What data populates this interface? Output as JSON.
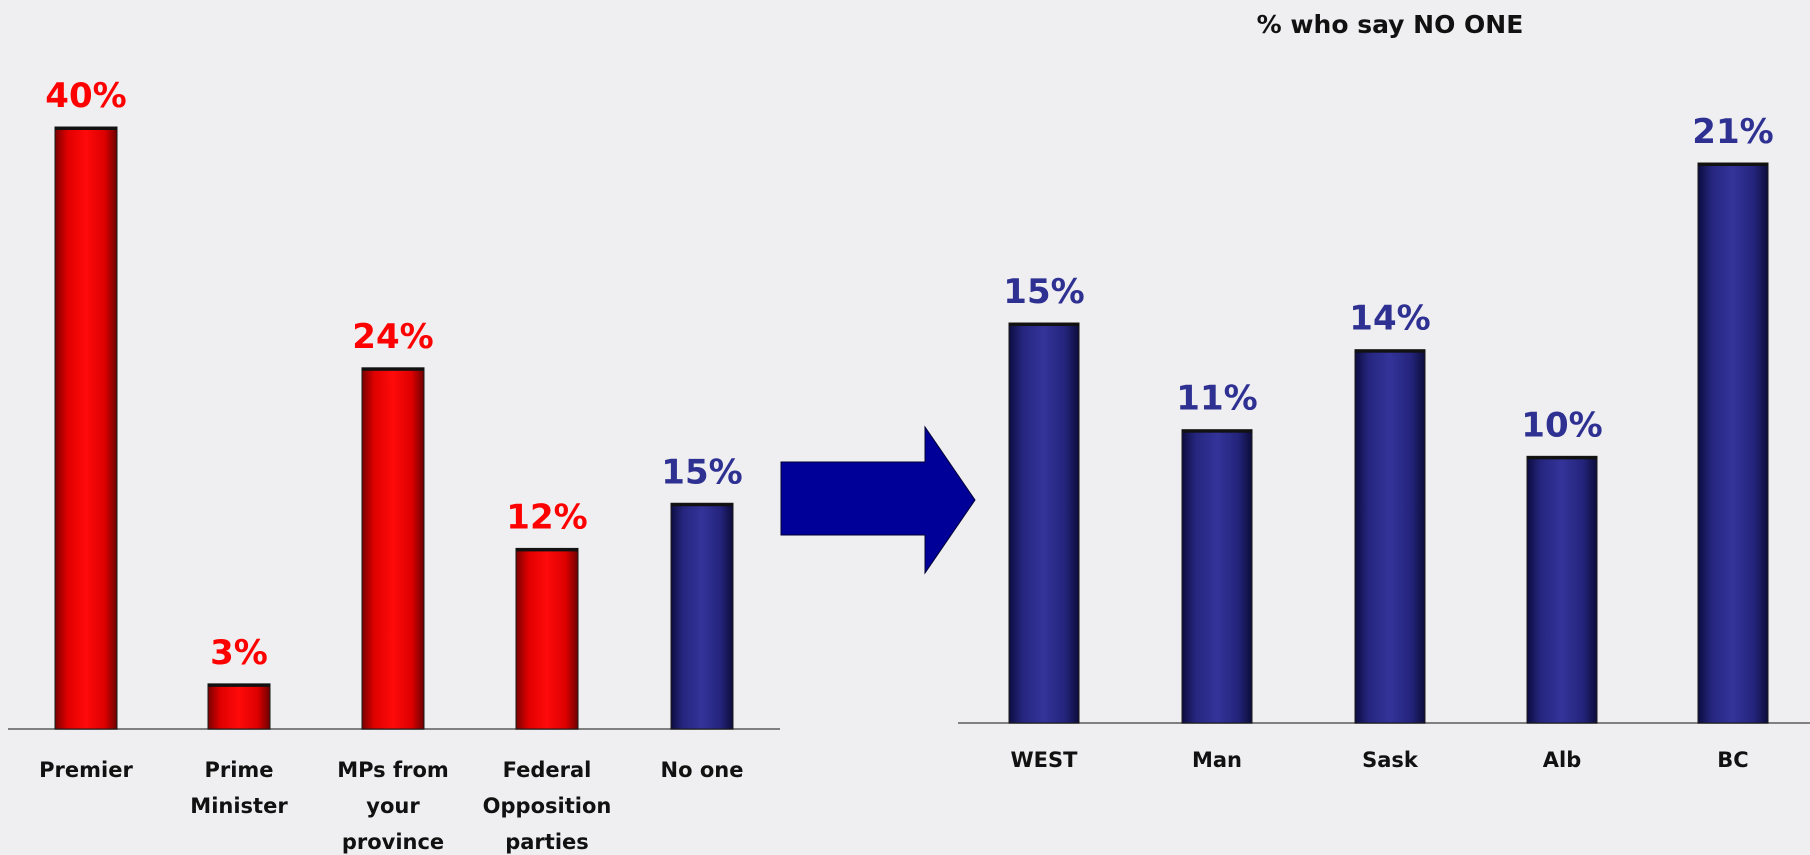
{
  "chart_data": [
    {
      "type": "bar",
      "title": "",
      "categories": [
        [
          "Premier"
        ],
        [
          "Prime",
          "Minister"
        ],
        [
          "MPs from",
          "your",
          "province"
        ],
        [
          "Federal",
          "Opposition",
          "parties"
        ],
        [
          "No one"
        ]
      ],
      "values": [
        40,
        3,
        24,
        12,
        15
      ],
      "value_labels": [
        "40%",
        "3%",
        "24%",
        "12%",
        "15%"
      ],
      "bar_colors": [
        "#e60000",
        "#e60000",
        "#e60000",
        "#e60000",
        "#2a2a8c"
      ],
      "label_colors": [
        "#ff0000",
        "#ff0000",
        "#ff0000",
        "#ff0000",
        "#2e3192"
      ],
      "ylim": [
        0,
        40
      ],
      "grid": false,
      "legend": "none"
    },
    {
      "type": "bar",
      "title": "% who say NO ONE",
      "categories": [
        [
          "WEST"
        ],
        [
          "Man"
        ],
        [
          "Sask"
        ],
        [
          "Alb"
        ],
        [
          "BC"
        ]
      ],
      "values": [
        15,
        11,
        14,
        10,
        21
      ],
      "value_labels": [
        "15%",
        "11%",
        "14%",
        "10%",
        "21%"
      ],
      "bar_colors": [
        "#2a2a8c",
        "#2a2a8c",
        "#2a2a8c",
        "#2a2a8c",
        "#2a2a8c"
      ],
      "label_colors": [
        "#2e3192",
        "#2e3192",
        "#2e3192",
        "#2e3192",
        "#2e3192"
      ],
      "ylim": [
        0,
        21
      ],
      "grid": false,
      "legend": "none"
    }
  ],
  "arrow": {
    "icon": "right-arrow-icon",
    "color": "#000099"
  }
}
